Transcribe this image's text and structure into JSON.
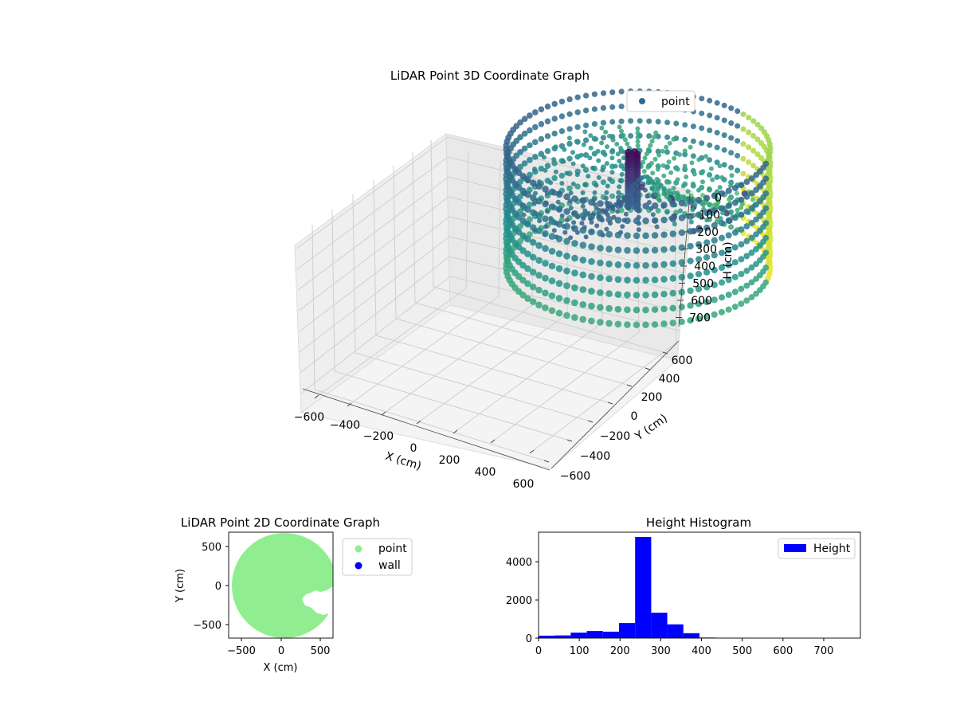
{
  "chart_data": [
    {
      "type": "scatter3d",
      "title": "LiDAR Point 3D Coordinate Graph",
      "xlabel": "X (cm)",
      "ylabel": "Y (cm)",
      "zlabel": "H (cm)",
      "xlim": [
        -700,
        700
      ],
      "ylim": [
        -700,
        700
      ],
      "zlim": [
        750,
        0
      ],
      "xticks": [
        "−600",
        "−400",
        "−200",
        "0",
        "200",
        "400",
        "600"
      ],
      "yticks": [
        "−600",
        "−400",
        "−200",
        "0",
        "200",
        "400",
        "600"
      ],
      "zticks": [
        "0",
        "100",
        "200",
        "300",
        "400",
        "500",
        "600",
        "700"
      ],
      "grid": true,
      "colormap": "viridis",
      "legend": {
        "placement": "upper-right",
        "entries": [
          {
            "label": "point",
            "color": "#2f6a91"
          }
        ]
      },
      "ring": {
        "radius_cm": 660,
        "top_height_cm": 180,
        "bottom_height_cm": 700
      },
      "dark_cluster": {
        "x_cm": 0,
        "y_cm": -60,
        "height_cm": [
          180,
          420
        ]
      }
    },
    {
      "type": "scatter",
      "title": "LiDAR Point 2D Coordinate Graph",
      "xlabel": "X (cm)",
      "ylabel": "Y (cm)",
      "xlim": [
        -680,
        680
      ],
      "ylim": [
        -680,
        680
      ],
      "xticks": [
        "−500",
        "0",
        "500"
      ],
      "yticks": [
        "500",
        "0",
        "−500"
      ],
      "legend": {
        "placement": "outside-right",
        "entries": [
          {
            "label": "point",
            "color": "#90ee90"
          },
          {
            "label": "wall",
            "color": "#0000ff"
          }
        ]
      },
      "region": {
        "shape": "disc",
        "center": [
          0,
          0
        ],
        "radius": 650,
        "color": "#90ee90"
      }
    },
    {
      "type": "bar",
      "title": "Height Histogram",
      "xlabel": "",
      "ylabel": "",
      "xlim": [
        0,
        790
      ],
      "ylim": [
        0,
        5550
      ],
      "xticks": [
        "0",
        "100",
        "200",
        "300",
        "400",
        "500",
        "600",
        "700"
      ],
      "yticks": [
        "0",
        "2000",
        "4000"
      ],
      "color": "#0000ff",
      "legend": {
        "placement": "upper-right",
        "entries": [
          {
            "label": "Height",
            "color": "#0000ff"
          }
        ]
      },
      "bin_edges": [
        0,
        39.5,
        79,
        118.5,
        158,
        197.5,
        237,
        276.5,
        316,
        355.5,
        395,
        434.5,
        474,
        513.5,
        553,
        592.5,
        632,
        671.5,
        711,
        750.5,
        790
      ],
      "values": [
        130,
        140,
        290,
        370,
        340,
        790,
        5300,
        1330,
        720,
        260,
        30,
        20,
        15,
        10,
        10,
        10,
        10,
        5,
        5,
        5
      ]
    }
  ]
}
